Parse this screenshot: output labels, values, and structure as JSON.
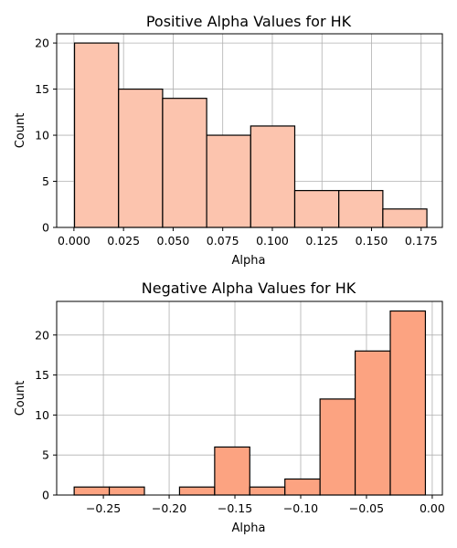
{
  "chart_data": [
    {
      "type": "bar",
      "title": "Positive Alpha Values for HK",
      "xlabel": "Alpha",
      "ylabel": "Count",
      "bar_color": "#fcc4ae",
      "grid": true,
      "xlim": [
        -0.0087,
        0.1857
      ],
      "ylim": [
        0,
        21
      ],
      "xticks": [
        0.0,
        0.025,
        0.05,
        0.075,
        0.1,
        0.125,
        0.15,
        0.175
      ],
      "xtick_labels": [
        "0.000",
        "0.025",
        "0.050",
        "0.075",
        "0.100",
        "0.125",
        "0.150",
        "0.175"
      ],
      "yticks": [
        0,
        5,
        10,
        15,
        20
      ],
      "ytick_labels": [
        "0",
        "5",
        "10",
        "15",
        "20"
      ],
      "bins": [
        {
          "start": 0.0003,
          "end": 0.0225,
          "count": 20
        },
        {
          "start": 0.0225,
          "end": 0.0447,
          "count": 15
        },
        {
          "start": 0.0447,
          "end": 0.0669,
          "count": 14
        },
        {
          "start": 0.0669,
          "end": 0.0891,
          "count": 10
        },
        {
          "start": 0.0891,
          "end": 0.1113,
          "count": 11
        },
        {
          "start": 0.1113,
          "end": 0.1335,
          "count": 4
        },
        {
          "start": 0.1335,
          "end": 0.1557,
          "count": 4
        },
        {
          "start": 0.1557,
          "end": 0.1779,
          "count": 2
        }
      ]
    },
    {
      "type": "bar",
      "title": "Negative Alpha Values for HK",
      "xlabel": "Alpha",
      "ylabel": "Count",
      "bar_color": "#fca381",
      "grid": true,
      "xlim": [
        -0.2855,
        0.0077
      ],
      "ylim": [
        0,
        24.2
      ],
      "xticks": [
        -0.25,
        -0.2,
        -0.15,
        -0.1,
        -0.05,
        0.0
      ],
      "xtick_labels": [
        "−0.25",
        "−0.20",
        "−0.15",
        "−0.10",
        "−0.05",
        "0.00"
      ],
      "yticks": [
        0,
        5,
        10,
        15,
        20
      ],
      "ytick_labels": [
        "0",
        "5",
        "10",
        "15",
        "20"
      ],
      "bins": [
        {
          "start": -0.2722,
          "end": -0.2455,
          "count": 1
        },
        {
          "start": -0.2455,
          "end": -0.2188,
          "count": 1
        },
        {
          "start": -0.2188,
          "end": -0.1921,
          "count": 0
        },
        {
          "start": -0.1921,
          "end": -0.1654,
          "count": 1
        },
        {
          "start": -0.1654,
          "end": -0.1387,
          "count": 6
        },
        {
          "start": -0.1387,
          "end": -0.112,
          "count": 1
        },
        {
          "start": -0.112,
          "end": -0.0853,
          "count": 2
        },
        {
          "start": -0.0853,
          "end": -0.0586,
          "count": 12
        },
        {
          "start": -0.0586,
          "end": -0.0319,
          "count": 18
        },
        {
          "start": -0.0319,
          "end": -0.0052,
          "count": 23
        }
      ]
    }
  ]
}
